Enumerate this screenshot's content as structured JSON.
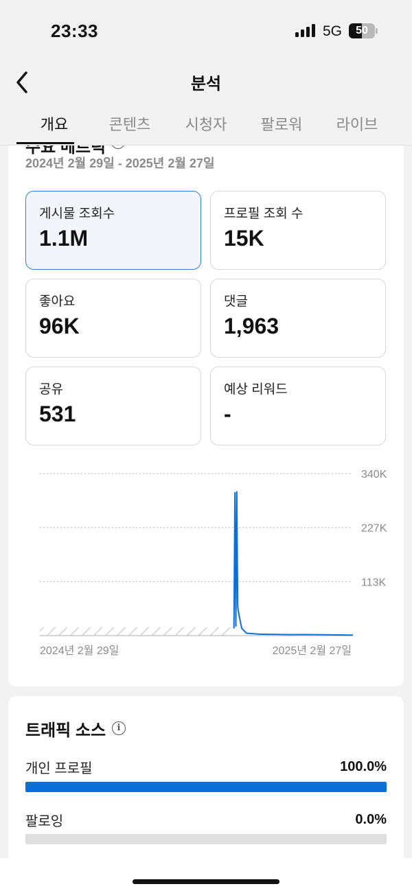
{
  "status_bar": {
    "time": "23:33",
    "network": "5G",
    "battery": "50",
    "battery_level": 0.5
  },
  "header": {
    "title": "분석",
    "back_icon": "chevron-left-icon"
  },
  "tabs": [
    {
      "label": "개요",
      "active": true
    },
    {
      "label": "콘텐츠",
      "active": false
    },
    {
      "label": "시청자",
      "active": false
    },
    {
      "label": "팔로워",
      "active": false
    },
    {
      "label": "라이브",
      "active": false
    }
  ],
  "key_metrics": {
    "title": "주요 메트릭",
    "info_icon": "info-icon",
    "date_range": "2024년 2월 29일 - 2025년 2월 27일",
    "metrics": [
      {
        "label": "게시물 조회수",
        "value": "1.1M",
        "selected": true
      },
      {
        "label": "프로필 조회 수",
        "value": "15K",
        "selected": false
      },
      {
        "label": "좋아요",
        "value": "96K",
        "selected": false
      },
      {
        "label": "댓글",
        "value": "1,963",
        "selected": false
      },
      {
        "label": "공유",
        "value": "531",
        "selected": false
      },
      {
        "label": "예상 리워드",
        "value": "-",
        "selected": false
      }
    ]
  },
  "chart_data": {
    "type": "line",
    "x_start_label": "2024년 2월 29일",
    "x_end_label": "2025년 2월 27일",
    "y_tick_labels": [
      "340K",
      "227K",
      "113K"
    ],
    "y_ticks": [
      340000,
      227000,
      113000
    ],
    "ylim": [
      0,
      340000
    ],
    "grid": true,
    "line_color": "#0a6fd9",
    "no_data_region": [
      0,
      0.62
    ],
    "series": [
      {
        "values": [
          [
            0.62,
            15000
          ],
          [
            0.623,
            300000
          ],
          [
            0.626,
            20000
          ],
          [
            0.629,
            302000
          ],
          [
            0.632,
            60000
          ],
          [
            0.637,
            40000
          ],
          [
            0.645,
            15000
          ],
          [
            0.66,
            5000
          ],
          [
            0.7,
            3000
          ],
          [
            0.75,
            2500
          ],
          [
            0.8,
            2000
          ],
          [
            0.85,
            2200
          ],
          [
            0.9,
            1800
          ],
          [
            0.95,
            1500
          ],
          [
            1.0,
            1000
          ]
        ]
      }
    ]
  },
  "traffic": {
    "title": "트래픽 소스",
    "info_icon": "info-icon",
    "items": [
      {
        "label": "개인 프로필",
        "value": "100.0%",
        "fraction": 1.0
      },
      {
        "label": "팔로잉",
        "value": "0.0%",
        "fraction": 0.0
      }
    ],
    "bar_color": "#0a6fd9"
  }
}
